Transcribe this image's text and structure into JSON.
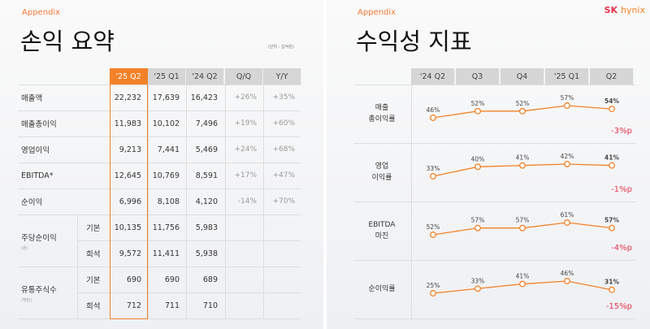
{
  "left": {
    "section": "Appendix",
    "title": "손익 요약",
    "unit": "(단위 : 십억원)",
    "headers": [
      "'25 Q2",
      "'25 Q1",
      "'24 Q2",
      "Q/Q",
      "Y/Y"
    ],
    "rows": [
      {
        "label": "매출액",
        "values": [
          "22,232",
          "17,639",
          "16,423",
          "+26%",
          "+35%"
        ]
      },
      {
        "label": "매출총이익",
        "values": [
          "11,983",
          "10,102",
          "7,496",
          "+19%",
          "+60%"
        ]
      },
      {
        "label": "영업이익",
        "values": [
          "9,213",
          "7,441",
          "5,469",
          "+24%",
          "+68%"
        ]
      },
      {
        "label": "EBITDA*",
        "values": [
          "12,645",
          "10,769",
          "8,591",
          "+17%",
          "+47%"
        ]
      },
      {
        "label": "순이익",
        "values": [
          "6,996",
          "8,108",
          "4,120",
          "-14%",
          "+70%"
        ]
      }
    ],
    "groups": [
      {
        "label": "주당순이익",
        "unit": "(원)",
        "sub": [
          {
            "label": "기본",
            "values": [
              "10,135",
              "11,756",
              "5,983"
            ]
          },
          {
            "label": "희석",
            "values": [
              "9,572",
              "11,411",
              "5,938"
            ]
          }
        ]
      },
      {
        "label": "유통주식수",
        "unit": "(백만)",
        "sub": [
          {
            "label": "기본",
            "values": [
              "690",
              "690",
              "689"
            ]
          },
          {
            "label": "희석",
            "values": [
              "712",
              "711",
              "710"
            ]
          }
        ]
      }
    ]
  },
  "right": {
    "section": "Appendix",
    "title": "수익성 지표",
    "logo": "SK hynix",
    "logo_sk": "SK",
    "logo_hynix": "hynix",
    "headers": [
      "'24 Q2",
      "Q3",
      "Q4",
      "'25 Q1",
      "Q2"
    ]
  },
  "chart_data": {
    "type": "line",
    "categories": [
      "'24 Q2",
      "Q3",
      "Q4",
      "'25 Q1",
      "Q2"
    ],
    "series": [
      {
        "name": "매출 총이익률",
        "label_lines": [
          "매출",
          "총이익률"
        ],
        "values": [
          46,
          52,
          52,
          57,
          54
        ],
        "labels": [
          "46%",
          "52%",
          "52%",
          "57%",
          "54%"
        ],
        "delta": "-3%p"
      },
      {
        "name": "영업 이익률",
        "label_lines": [
          "영업",
          "이익률"
        ],
        "values": [
          33,
          40,
          41,
          42,
          41
        ],
        "labels": [
          "33%",
          "40%",
          "41%",
          "42%",
          "41%"
        ],
        "delta": "-1%p"
      },
      {
        "name": "EBITDA 마진",
        "label_lines": [
          "EBITDA",
          "마진"
        ],
        "values": [
          52,
          57,
          57,
          61,
          57
        ],
        "labels": [
          "52%",
          "57%",
          "57%",
          "61%",
          "57%"
        ],
        "delta": "-4%p"
      },
      {
        "name": "순이익률",
        "label_lines": [
          "순이익률"
        ],
        "values": [
          25,
          33,
          41,
          46,
          31
        ],
        "labels": [
          "25%",
          "33%",
          "41%",
          "46%",
          "31%"
        ],
        "delta": "-15%p"
      }
    ],
    "colors": {
      "line": "#f28228",
      "delta": "#e8344e"
    }
  }
}
